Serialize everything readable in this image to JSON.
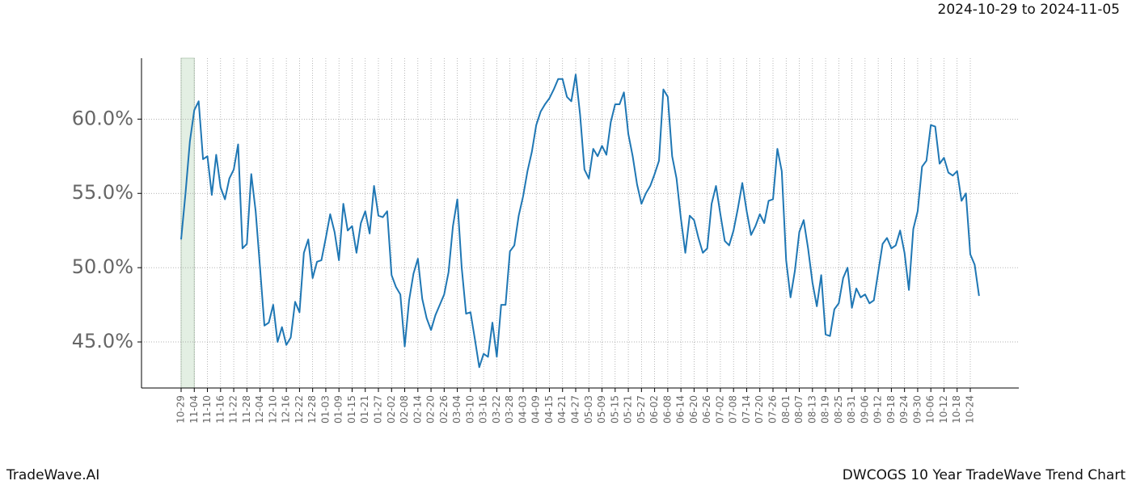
{
  "header": {
    "date_range": "2024-10-29 to 2024-11-05"
  },
  "footer": {
    "brand": "TradeWave.AI",
    "chart_name": "DWCOGS 10 Year TradeWave Trend Chart"
  },
  "chart_data": {
    "type": "line",
    "categories": [
      "10-29",
      null,
      null,
      "11-04",
      null,
      null,
      "11-10",
      null,
      null,
      "11-16",
      null,
      null,
      "11-22",
      null,
      null,
      "11-28",
      null,
      null,
      "12-04",
      null,
      null,
      "12-10",
      null,
      null,
      "12-16",
      null,
      null,
      "12-22",
      null,
      null,
      "12-28",
      null,
      null,
      "01-03",
      null,
      null,
      "01-09",
      null,
      null,
      "01-15",
      null,
      null,
      "01-21",
      null,
      null,
      "01-27",
      null,
      null,
      "02-02",
      null,
      null,
      "02-08",
      null,
      null,
      "02-14",
      null,
      null,
      "02-20",
      null,
      null,
      "02-26",
      null,
      null,
      "03-04",
      null,
      null,
      "03-10",
      null,
      null,
      "03-16",
      null,
      null,
      "03-22",
      null,
      null,
      "03-28",
      null,
      null,
      "04-03",
      null,
      null,
      "04-09",
      null,
      null,
      "04-15",
      null,
      null,
      "04-21",
      null,
      null,
      "04-27",
      null,
      null,
      "05-03",
      null,
      null,
      "05-09",
      null,
      null,
      "05-15",
      null,
      null,
      "05-21",
      null,
      null,
      "05-27",
      null,
      null,
      "06-02",
      null,
      null,
      "06-08",
      null,
      null,
      "06-14",
      null,
      null,
      "06-20",
      null,
      null,
      "06-26",
      null,
      null,
      "07-02",
      null,
      null,
      "07-08",
      null,
      null,
      "07-14",
      null,
      null,
      "07-20",
      null,
      null,
      "07-26",
      null,
      null,
      "08-01",
      null,
      null,
      "08-07",
      null,
      null,
      "08-13",
      null,
      null,
      "08-19",
      null,
      null,
      "08-25",
      null,
      null,
      "08-31",
      null,
      null,
      "09-06",
      null,
      null,
      "09-12",
      null,
      null,
      "09-18",
      null,
      null,
      "09-24",
      null,
      null,
      "09-30",
      null,
      null,
      "10-06",
      null,
      null,
      "10-12",
      null,
      null,
      "10-18",
      null,
      null,
      "10-24",
      null,
      null
    ],
    "series": [
      {
        "color": "#1f77b4",
        "values": [
          51.9,
          55.0,
          58.5,
          60.6,
          61.2,
          57.3,
          57.5,
          54.9,
          57.6,
          55.4,
          54.6,
          56.0,
          56.6,
          58.3,
          51.3,
          51.6,
          56.3,
          53.8,
          50.0,
          46.1,
          46.3,
          47.5,
          45.0,
          46.0,
          44.8,
          45.3,
          47.7,
          47.0,
          51.0,
          51.9,
          49.3,
          50.4,
          50.5,
          52.0,
          53.6,
          52.4,
          50.5,
          54.3,
          52.5,
          52.8,
          51.0,
          53.0,
          53.8,
          52.3,
          55.5,
          53.5,
          53.4,
          53.8,
          49.5,
          48.7,
          48.2,
          44.7,
          47.8,
          49.6,
          50.6,
          47.9,
          46.6,
          45.8,
          46.8,
          47.5,
          48.2,
          49.7,
          52.8,
          54.6,
          50.0,
          46.9,
          47.0,
          45.2,
          43.3,
          44.2,
          44.0,
          46.3,
          44.0,
          47.5,
          47.5,
          51.1,
          51.5,
          53.5,
          54.8,
          56.5,
          57.8,
          59.6,
          60.5,
          61.0,
          61.4,
          62.0,
          62.7,
          62.7,
          61.5,
          61.2,
          63.0,
          60.3,
          56.6,
          56.0,
          58.0,
          57.5,
          58.2,
          57.6,
          59.8,
          61.0,
          61.0,
          61.8,
          59.0,
          57.5,
          55.6,
          54.3,
          55.0,
          55.5,
          56.3,
          57.2,
          62.0,
          61.5,
          57.5,
          56.0,
          53.3,
          51.0,
          53.5,
          53.2,
          52.0,
          51.0,
          51.3,
          54.3,
          55.5,
          53.6,
          51.8,
          51.5,
          52.5,
          54.0,
          55.7,
          53.8,
          52.2,
          52.8,
          53.6,
          53.0,
          54.5,
          54.6,
          58.0,
          56.5,
          50.5,
          48.0,
          49.8,
          52.4,
          53.2,
          51.3,
          49.0,
          47.4,
          49.5,
          45.5,
          45.4,
          47.2,
          47.6,
          49.3,
          50.0,
          47.3,
          48.6,
          48.0,
          48.2,
          47.6,
          47.8,
          49.7,
          51.6,
          52.0,
          51.3,
          51.5,
          52.5,
          51.0,
          48.5,
          52.6,
          53.8,
          56.8,
          57.2,
          59.6,
          59.5,
          57.0,
          57.4,
          56.4,
          56.2,
          56.5,
          54.5,
          55.0,
          50.9,
          50.2,
          48.1
        ]
      }
    ],
    "ylim": [
      41.9,
      64.1
    ],
    "yticks": [
      {
        "value": 45,
        "label": "45.0%"
      },
      {
        "value": 50,
        "label": "50.0%"
      },
      {
        "value": 55,
        "label": "55.0%"
      },
      {
        "value": 60,
        "label": "60.0%"
      }
    ],
    "grid": true,
    "highlight_range": [
      "10-29",
      "11-04"
    ],
    "highlight_color": "#e3efe3"
  }
}
